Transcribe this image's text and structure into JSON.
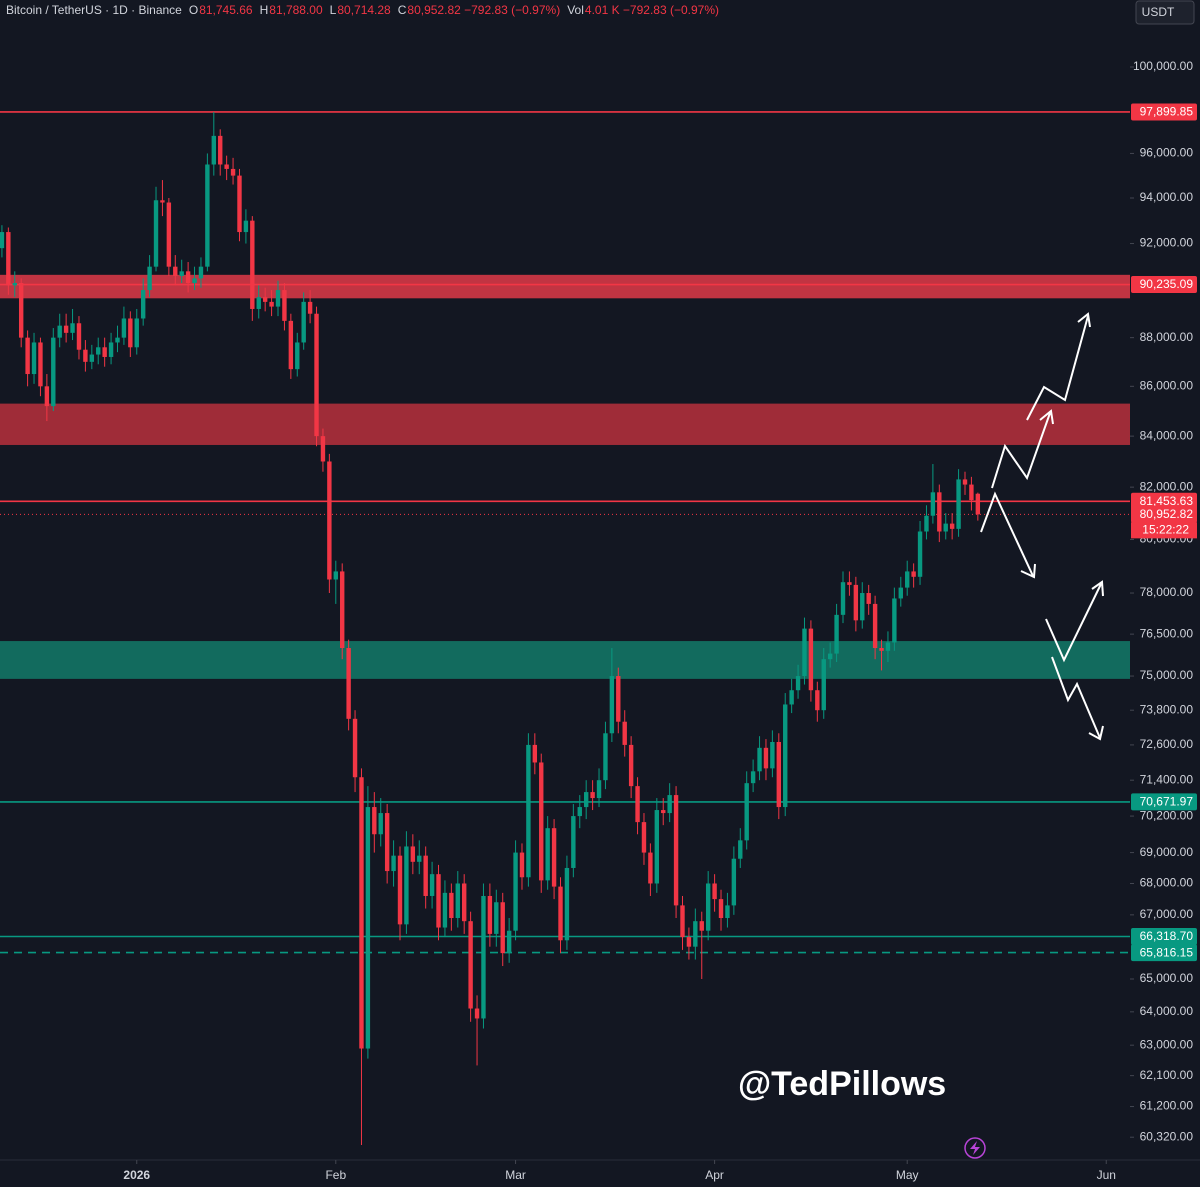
{
  "chart_data": {
    "type": "candlestick",
    "title": "Bitcoin / TetherUS · 1D · Binance",
    "header": [
      {
        "key": "O",
        "value": "81,745.66"
      },
      {
        "key": "H",
        "value": "81,788.00"
      },
      {
        "key": "L",
        "value": "80,714.28"
      },
      {
        "key": "C",
        "value": "80,952.82 −792.83 (−0.97%)"
      },
      {
        "key": "Vol",
        "value": "4.01 K −792.83 (−0.97%)"
      }
    ],
    "currency": "USDT",
    "watermark": "@TedPillows",
    "countdown": "15:22:22",
    "up_color": "#089981",
    "down_color": "#f23645",
    "log_scale": true,
    "grid": false,
    "ylim": [
      59674,
      103216
    ],
    "yticks": [
      {
        "value": 100000,
        "label": "100,000.00"
      },
      {
        "value": 96000,
        "label": "96,000.00"
      },
      {
        "value": 94000,
        "label": "94,000.00"
      },
      {
        "value": 92000,
        "label": "92,000.00"
      },
      {
        "value": 88000,
        "label": "88,000.00"
      },
      {
        "value": 86000,
        "label": "86,000.00"
      },
      {
        "value": 84000,
        "label": "84,000.00"
      },
      {
        "value": 82000,
        "label": "82,000.00"
      },
      {
        "value": 80000,
        "label": "80,000.00"
      },
      {
        "value": 78000,
        "label": "78,000.00"
      },
      {
        "value": 76500,
        "label": "76,500.00"
      },
      {
        "value": 75000,
        "label": "75,000.00"
      },
      {
        "value": 73800,
        "label": "73,800.00"
      },
      {
        "value": 72600,
        "label": "72,600.00"
      },
      {
        "value": 71400,
        "label": "71,400.00"
      },
      {
        "value": 70200,
        "label": "70,200.00"
      },
      {
        "value": 69000,
        "label": "69,000.00"
      },
      {
        "value": 68000,
        "label": "68,000.00"
      },
      {
        "value": 67000,
        "label": "67,000.00"
      },
      {
        "value": 65000,
        "label": "65,000.00"
      },
      {
        "value": 64000,
        "label": "64,000.00"
      },
      {
        "value": 63000,
        "label": "63,000.00"
      },
      {
        "value": 62100,
        "label": "62,100.00"
      },
      {
        "value": 61200,
        "label": "61,200.00"
      },
      {
        "value": 60320,
        "label": "60,320.00"
      }
    ],
    "xlim": [
      -0.3,
      175.7
    ],
    "xticks": [
      {
        "value": 21,
        "label": "2026"
      },
      {
        "value": 52,
        "label": "Feb"
      },
      {
        "value": 80,
        "label": "Mar"
      },
      {
        "value": 111,
        "label": "Apr"
      },
      {
        "value": 141,
        "label": "May"
      },
      {
        "value": 172,
        "label": "Jun"
      }
    ],
    "zones": [
      {
        "from": 89650,
        "to": 90650,
        "color": "#e03a48"
      },
      {
        "from": 83650,
        "to": 85300,
        "color": "#b8303c"
      },
      {
        "from": 74900,
        "to": 76250,
        "color": "#137a68"
      }
    ],
    "levels": [
      {
        "value": 97899.85,
        "label": "97,899.85",
        "color": "#f23645",
        "style": "solid"
      },
      {
        "value": 90235.09,
        "label": "90,235.09",
        "color": "#f23645",
        "style": "solid"
      },
      {
        "value": 81453.63,
        "label": "81,453.63",
        "color": "#f23645",
        "style": "solid"
      },
      {
        "value": 80952.82,
        "label": "80,952.82",
        "color": "#f23645",
        "style": "dotted"
      },
      {
        "value": 70671.97,
        "label": "70,671.97",
        "color": "#089981",
        "style": "solid"
      },
      {
        "value": 66318.7,
        "label": "66,318.70",
        "color": "#089981",
        "style": "solid"
      },
      {
        "value": 65816.15,
        "label": "65,816.15",
        "color": "#089981",
        "style": "dashed"
      }
    ],
    "open": [
      91800,
      92500,
      90200,
      90300,
      88000,
      86500,
      87800,
      86000,
      85200,
      88000,
      88500,
      88200,
      88600,
      87500,
      87000,
      87300,
      87600,
      87200,
      87800,
      88000,
      88800,
      87600,
      88800,
      90000,
      91000,
      93900,
      93800,
      91000,
      90600,
      90800,
      90300,
      90500,
      91000,
      95500,
      96800,
      95500,
      95300,
      95000,
      92500,
      93000,
      89200,
      89700,
      89500,
      89300,
      90000,
      88700,
      86700,
      87800,
      89500,
      89000,
      84000,
      83000,
      78500,
      78800,
      76000,
      73500,
      71500,
      62900,
      70500,
      69600,
      70300,
      68400,
      68900,
      66700,
      69200,
      68700,
      68900,
      67600,
      68300,
      66600,
      67700,
      66900,
      68000,
      66800,
      64100,
      63800,
      67600,
      66400,
      67400,
      65800,
      66500,
      69000,
      68200,
      72600,
      72000,
      68100,
      69800,
      67900,
      66200,
      68500,
      70200,
      70500,
      71000,
      70800,
      71400,
      73000,
      75000,
      73400,
      72600,
      71200,
      70000,
      69000,
      68000,
      70400,
      70300,
      70900,
      67300,
      66300,
      66000,
      66800,
      66500,
      68000,
      67500,
      66900,
      67300,
      68800,
      69400,
      71300,
      71700,
      72500,
      71800,
      72700,
      70500,
      74000,
      74500,
      75000,
      76700,
      74500,
      73800,
      75600,
      75800,
      77200,
      78400,
      78300,
      77000,
      78000,
      77600,
      76000,
      75900,
      76200,
      77800,
      78200,
      78800,
      78600,
      80300,
      80900,
      81800,
      80300,
      80600,
      80400,
      82300,
      82100,
      81745.66
    ],
    "high": [
      92800,
      92700,
      90800,
      90500,
      88300,
      88200,
      88000,
      86500,
      88400,
      89000,
      89000,
      89200,
      88900,
      87900,
      87700,
      88000,
      88000,
      88200,
      88500,
      89300,
      89100,
      89200,
      90500,
      91500,
      94500,
      94800,
      94000,
      91500,
      91300,
      91200,
      91000,
      91400,
      96000,
      97900,
      97100,
      95900,
      95800,
      95300,
      93500,
      93200,
      90200,
      90100,
      90000,
      90400,
      90300,
      89000,
      88200,
      89900,
      90000,
      89300,
      84300,
      83300,
      79200,
      79100,
      76300,
      73800,
      71800,
      71200,
      71000,
      70800,
      70600,
      69400,
      69200,
      69700,
      69600,
      69400,
      69200,
      68700,
      68600,
      68100,
      68000,
      68400,
      68300,
      67100,
      64500,
      68000,
      68000,
      67800,
      67700,
      66900,
      69400,
      69300,
      73000,
      73000,
      72300,
      70200,
      70100,
      68200,
      68900,
      70600,
      70900,
      71400,
      71400,
      71800,
      73400,
      76000,
      75300,
      73800,
      72900,
      71500,
      70300,
      69300,
      70800,
      70800,
      71300,
      71200,
      67600,
      66600,
      67200,
      67100,
      68400,
      68300,
      67800,
      67700,
      69200,
      69800,
      71700,
      72100,
      72900,
      72800,
      73100,
      73000,
      74400,
      74900,
      75400,
      77100,
      77000,
      74800,
      76000,
      76200,
      77600,
      78800,
      78800,
      78600,
      78400,
      78300,
      77900,
      76300,
      76600,
      78200,
      78600,
      79200,
      79100,
      80700,
      81300,
      82900,
      82100,
      81000,
      81000,
      82700,
      82600,
      82400,
      81788
    ],
    "low": [
      91400,
      89800,
      89700,
      87600,
      86000,
      86100,
      85600,
      84600,
      85000,
      87600,
      87800,
      87900,
      87100,
      86600,
      86700,
      86900,
      86800,
      86900,
      87400,
      87700,
      87200,
      87300,
      88500,
      89700,
      90800,
      93200,
      90600,
      90200,
      90300,
      89900,
      90000,
      90100,
      90800,
      95000,
      95000,
      94800,
      94600,
      92100,
      92000,
      88700,
      88800,
      89100,
      88900,
      88900,
      88300,
      86300,
      86400,
      87500,
      88600,
      83600,
      82600,
      78000,
      77600,
      75600,
      73100,
      71000,
      60100,
      62600,
      69000,
      69200,
      68000,
      67900,
      66200,
      66400,
      68300,
      68300,
      67200,
      67200,
      66200,
      66300,
      66500,
      66600,
      66400,
      63700,
      62400,
      63500,
      66000,
      66000,
      65400,
      65500,
      66200,
      67800,
      67900,
      71600,
      67700,
      67800,
      67500,
      65800,
      65900,
      68200,
      69800,
      70100,
      70400,
      70500,
      71100,
      72700,
      73000,
      72200,
      70800,
      69600,
      68600,
      67600,
      67700,
      69900,
      70000,
      66900,
      65900,
      65600,
      65600,
      65000,
      66200,
      67100,
      66500,
      66600,
      67000,
      68500,
      69100,
      71000,
      71400,
      71400,
      71500,
      70100,
      70200,
      73700,
      74200,
      74700,
      74100,
      73400,
      73500,
      75300,
      75500,
      76900,
      77900,
      76600,
      76700,
      77200,
      75600,
      75200,
      75500,
      75900,
      77500,
      77900,
      78200,
      78300,
      80000,
      80600,
      79900,
      80000,
      80000,
      80100,
      81700,
      81100,
      80714.28
    ],
    "close": [
      92500,
      90200,
      90300,
      88000,
      86500,
      87800,
      86000,
      85200,
      88000,
      88500,
      88200,
      88600,
      87500,
      87000,
      87300,
      87600,
      87200,
      87800,
      88000,
      88800,
      87600,
      88800,
      90000,
      91000,
      93900,
      93800,
      91000,
      90600,
      90800,
      90300,
      90500,
      91000,
      95500,
      96800,
      95500,
      95300,
      95000,
      92500,
      93000,
      89200,
      89700,
      89500,
      89300,
      90000,
      88700,
      86700,
      87800,
      89500,
      89000,
      84000,
      83000,
      78500,
      78800,
      76000,
      73500,
      71500,
      62900,
      70500,
      69600,
      70300,
      68400,
      68900,
      66700,
      69200,
      68700,
      68900,
      67600,
      68300,
      66600,
      67700,
      66900,
      68000,
      66800,
      64100,
      63800,
      67600,
      66400,
      67400,
      65800,
      66500,
      69000,
      68200,
      72600,
      72000,
      68100,
      69800,
      67900,
      66200,
      68500,
      70200,
      70500,
      71000,
      70800,
      71400,
      73000,
      75000,
      73400,
      72600,
      71200,
      70000,
      69000,
      68000,
      70400,
      70300,
      70900,
      67300,
      66300,
      66000,
      66800,
      66500,
      68000,
      67500,
      66900,
      67300,
      68800,
      69400,
      71300,
      71700,
      72500,
      71800,
      72700,
      70500,
      74000,
      74500,
      75000,
      76700,
      74500,
      73800,
      75600,
      75800,
      77200,
      78400,
      78300,
      77000,
      78000,
      77600,
      76000,
      75900,
      76200,
      77800,
      78200,
      78800,
      78600,
      80300,
      80900,
      81800,
      80300,
      80600,
      80400,
      82300,
      82100,
      81500,
      80952.82
    ]
  }
}
